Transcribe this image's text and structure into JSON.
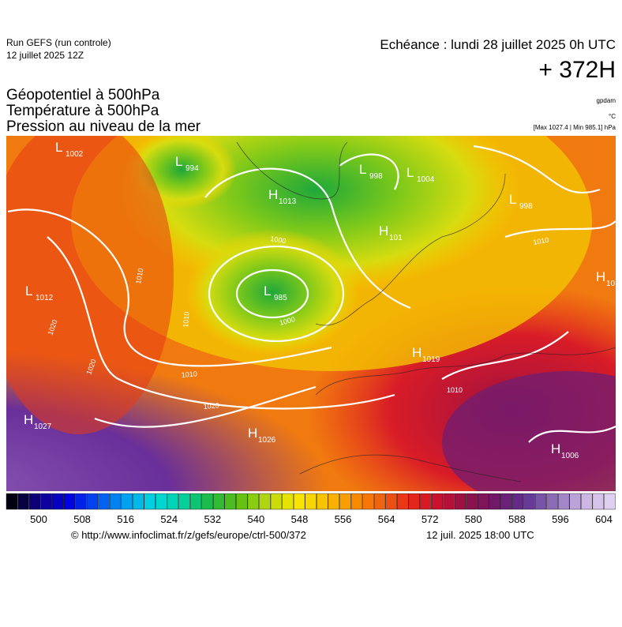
{
  "header": {
    "run": "Run GEFS (run controle)",
    "run_date": "12 juillet 2025 12Z",
    "echeance": "Echéance : lundi 28 juillet 2025 0h UTC",
    "lead": "+ 372H"
  },
  "fields": [
    "Géopotentiel à 500hPa",
    "Température à 500hPa",
    "Pression au niveau de la mer"
  ],
  "units": [
    "gpdam",
    "°C",
    "[Max 1027.4 | Min 985.1] hPa"
  ],
  "centers": [
    {
      "type": "L",
      "value": "1002"
    },
    {
      "type": "L",
      "value": "994"
    },
    {
      "type": "H",
      "value": "1013"
    },
    {
      "type": "L",
      "value": "998"
    },
    {
      "type": "L",
      "value": "1004"
    },
    {
      "type": "L",
      "value": "998"
    },
    {
      "type": "H",
      "value": "101"
    },
    {
      "type": "L",
      "value": "1012"
    },
    {
      "type": "L",
      "value": "985"
    },
    {
      "type": "H",
      "value": "1019"
    },
    {
      "type": "H",
      "value": "1027"
    },
    {
      "type": "H",
      "value": "1026"
    },
    {
      "type": "H",
      "value": "1006"
    },
    {
      "type": "H",
      "value": "10"
    }
  ],
  "isobar_labels": [
    "1020",
    "1010",
    "1000",
    "1010",
    "1020",
    "1010",
    "1020",
    "1010",
    "1000",
    "1010"
  ],
  "colorbar": {
    "ticks": [
      500,
      508,
      516,
      524,
      532,
      540,
      548,
      556,
      564,
      572,
      580,
      588,
      596,
      604
    ]
  },
  "footer": {
    "url": "© http://www.infoclimat.fr/z/gefs/europe/ctrl-500/372",
    "time": "12 juil. 2025 18:00 UTC"
  }
}
